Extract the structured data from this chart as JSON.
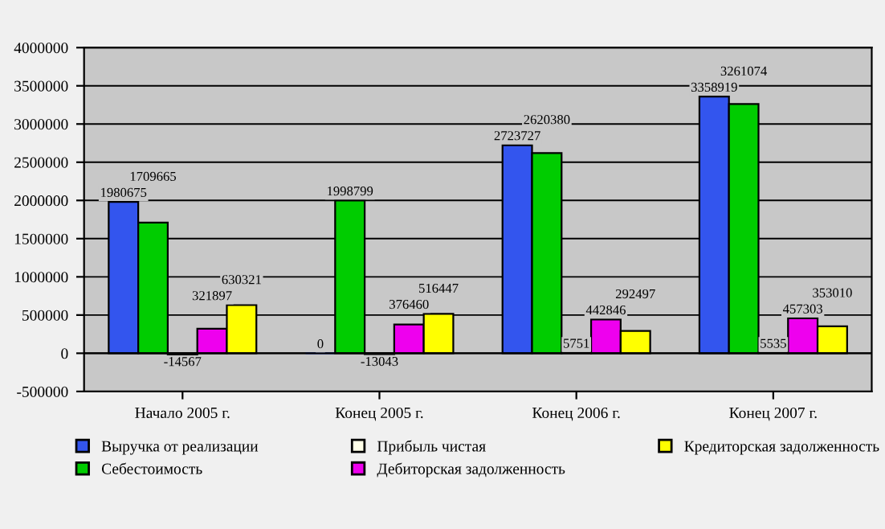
{
  "chart_data": {
    "type": "bar",
    "categories": [
      "Начало 2005 г.",
      "Конец 2005 г.",
      "Конец 2006 г.",
      "Конец 2007 г."
    ],
    "series": [
      {
        "name": "Выручка от реализации",
        "color": "#3355ee",
        "values": [
          1980675,
          0,
          2723727,
          3358919
        ],
        "value_labels": [
          "1980675",
          "0",
          "2723727",
          "3358919"
        ]
      },
      {
        "name": "Себестоимость",
        "color": "#00cc00",
        "values": [
          1709665,
          1998799,
          2620380,
          3261074
        ],
        "value_labels": [
          "1709665",
          "1998799",
          "2620380",
          "3261074"
        ]
      },
      {
        "name": "Прибыль чистая",
        "color": "#ffffe8",
        "values": [
          -14567,
          -13043,
          5751,
          5535
        ],
        "value_labels": [
          "-14567",
          "-13043",
          "5751",
          "5535"
        ]
      },
      {
        "name": "Дебиторская задолженность",
        "color": "#ee00ee",
        "values": [
          321897,
          376460,
          442846,
          457303
        ],
        "value_labels": [
          "321897",
          "376460",
          "442846",
          "457303"
        ]
      },
      {
        "name": "Кредиторская задолженность",
        "color": "#ffff00",
        "values": [
          630321,
          516447,
          292497,
          353010
        ],
        "value_labels": [
          "630321",
          "516447",
          "292497",
          "353010"
        ]
      }
    ],
    "ylim": [
      -500000,
      4000000
    ],
    "yticks": [
      -500000,
      0,
      500000,
      1000000,
      1500000,
      2000000,
      2500000,
      3000000,
      3500000,
      4000000
    ],
    "grid": "y",
    "legend": "bottom"
  }
}
